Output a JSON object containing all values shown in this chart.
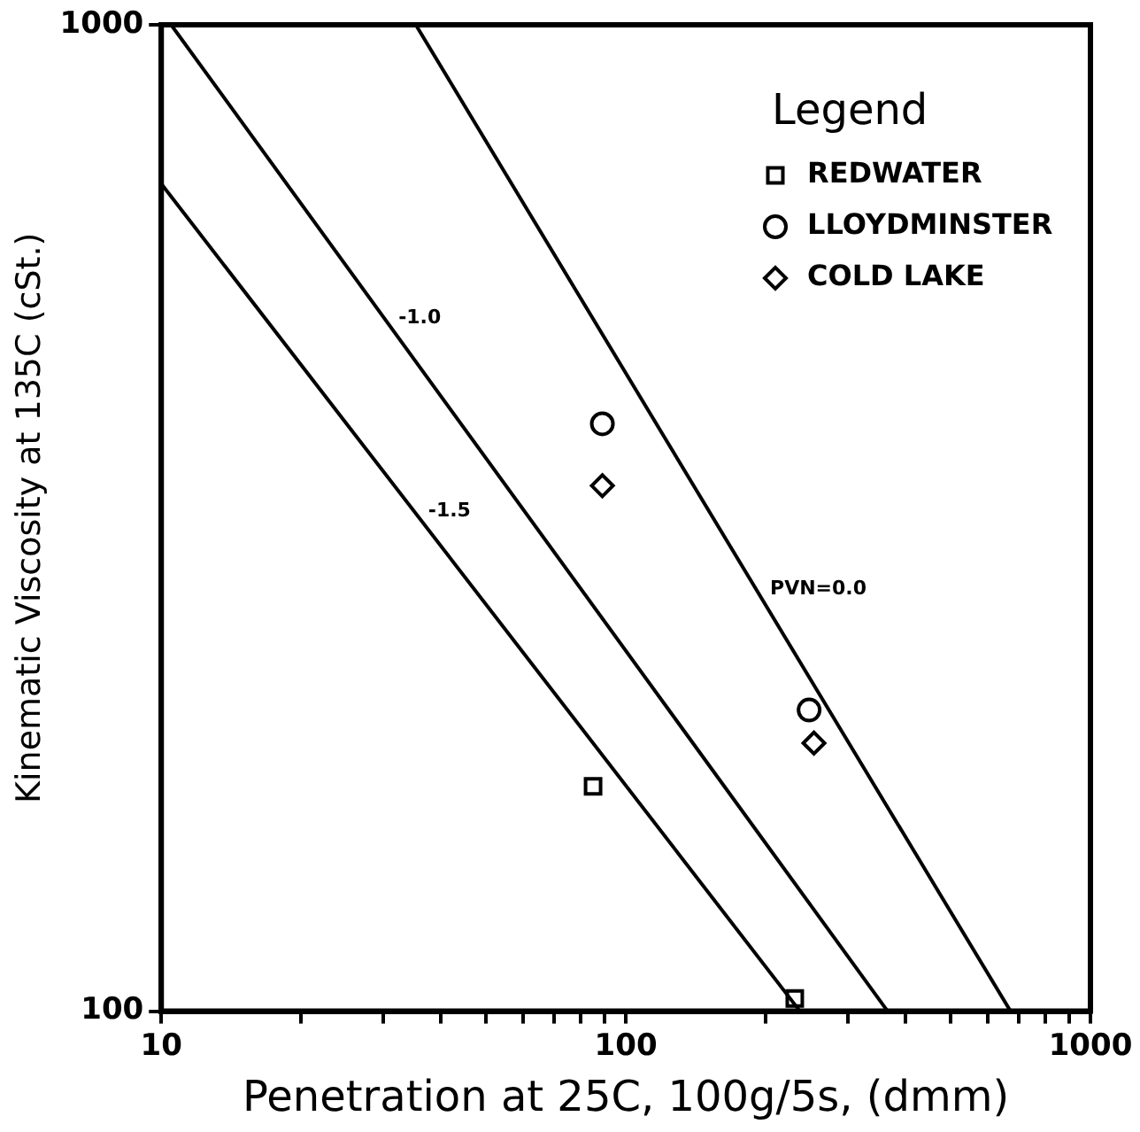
{
  "chart_data": {
    "type": "scatter",
    "xlabel": "Penetration at 25C, 100g/5s, (dmm)",
    "ylabel": "Kinematic Viscosity at 135C (cSt.)",
    "log": "xy",
    "xlim": [
      10,
      1000
    ],
    "ylim": [
      100,
      1000
    ],
    "xticks": [
      10,
      {
        "value": 20,
        "label": null
      },
      {
        "value": 30,
        "label": null
      },
      {
        "value": 40,
        "label": null
      },
      {
        "value": 50,
        "label": null
      },
      {
        "value": 60,
        "label": null
      },
      {
        "value": 70,
        "label": null
      },
      {
        "value": 80,
        "label": null
      },
      {
        "value": 90,
        "label": null
      },
      100,
      {
        "value": 200,
        "label": null
      },
      {
        "value": 300,
        "label": null
      },
      {
        "value": 400,
        "label": null
      },
      {
        "value": 500,
        "label": null
      },
      {
        "value": 600,
        "label": null
      },
      {
        "value": 700,
        "label": null
      },
      {
        "value": 800,
        "label": null
      },
      {
        "value": 900,
        "label": null
      },
      1000
    ],
    "yticks": [
      100,
      1000
    ],
    "grid": false,
    "legend": "top right",
    "legend_title": "Legend",
    "series": [
      {
        "type": "line",
        "color": "#000000",
        "marker": "none",
        "x": [
          10,
          237
        ],
        "values": [
          690,
          100
        ]
      },
      {
        "type": "line",
        "color": "#000000",
        "marker": "none",
        "x": [
          10.5,
          366
        ],
        "values": [
          1000,
          100
        ]
      },
      {
        "type": "line",
        "color": "#000000",
        "marker": "none",
        "x": [
          35.3,
          673
        ],
        "values": [
          1000,
          100
        ]
      },
      {
        "name": "REDWATER",
        "color": "#000000",
        "marker": "square",
        "x": [
          85,
          231
        ],
        "values": [
          169,
          103
        ]
      },
      {
        "name": "LLOYDMINSTER",
        "color": "#000000",
        "marker": "circle",
        "x": [
          89,
          248
        ],
        "values": [
          394,
          202
        ]
      },
      {
        "name": "COLD LAKE",
        "color": "#000000",
        "marker": "diamond",
        "x": [
          89,
          254
        ],
        "values": [
          341,
          187
        ]
      }
    ],
    "annotations": [
      {
        "text": "-1.0",
        "x": 30.2,
        "y": 504
      },
      {
        "text": "-1.5",
        "x": 35,
        "y": 321
      },
      {
        "text": "PVN=0.0",
        "x": 190.5,
        "y": 268
      }
    ]
  }
}
